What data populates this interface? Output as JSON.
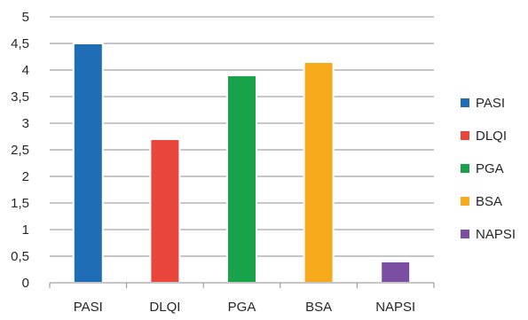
{
  "chart_data": {
    "type": "bar",
    "title": "",
    "xlabel": "",
    "ylabel": "",
    "categories": [
      "PASI",
      "DLQI",
      "PGA",
      "BSA",
      "NAPSI"
    ],
    "values": [
      4.5,
      2.7,
      3.9,
      4.15,
      0.4
    ],
    "colors": [
      "#1f6db5",
      "#e8463a",
      "#18a34a",
      "#f6aa1c",
      "#7b4ea3"
    ],
    "ylim": [
      0,
      5
    ],
    "yticks": [
      "0",
      "0,5",
      "1",
      "1,5",
      "2",
      "2,5",
      "3",
      "3,5",
      "4",
      "4,5",
      "5"
    ],
    "grid": true,
    "legend": {
      "position": "right",
      "entries": [
        "PASI",
        "DLQI",
        "PGA",
        "BSA",
        "NAPSI"
      ]
    }
  }
}
